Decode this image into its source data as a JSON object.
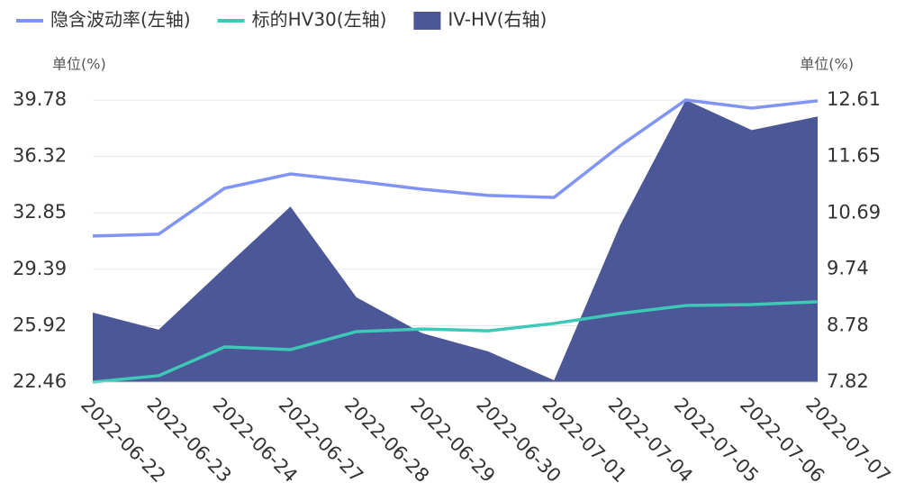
{
  "chart_data": {
    "type": "line",
    "categories": [
      "2022-06-22",
      "2022-06-23",
      "2022-06-24",
      "2022-06-27",
      "2022-06-28",
      "2022-06-29",
      "2022-06-30",
      "2022-07-01",
      "2022-07-04",
      "2022-07-05",
      "2022-07-06",
      "2022-07-07"
    ],
    "series": [
      {
        "name": "隐含波动率(左轴)",
        "color": "#8094f7",
        "values": [
          31.43,
          31.54,
          34.36,
          35.24,
          34.8,
          34.3,
          33.92,
          33.8,
          36.96,
          39.78,
          39.28,
          39.73
        ]
      },
      {
        "name": "标的HV30(左轴)",
        "color": "#3ec8b8",
        "values": [
          22.46,
          22.85,
          24.62,
          24.45,
          25.56,
          25.72,
          25.61,
          26.06,
          26.67,
          27.16,
          27.22,
          27.39
        ]
      },
      {
        "name": "IV-HV(右轴)",
        "color": "#4c5797",
        "type": "area",
        "axis": "y2",
        "values": [
          9.0,
          8.71,
          9.76,
          10.8,
          9.26,
          8.65,
          8.34,
          7.85,
          10.48,
          12.61,
          12.1,
          12.33
        ]
      }
    ],
    "ylabel": "单位(%)",
    "y2label": "单位(%)",
    "ylim": [
      22.46,
      39.78
    ],
    "yticks": [
      22.46,
      25.92,
      29.39,
      32.85,
      36.32,
      39.78
    ],
    "y2lim": [
      7.82,
      12.61
    ],
    "y2ticks": [
      7.82,
      8.78,
      9.74,
      10.69,
      11.65,
      12.61
    ],
    "grid": true,
    "legend": "top"
  }
}
